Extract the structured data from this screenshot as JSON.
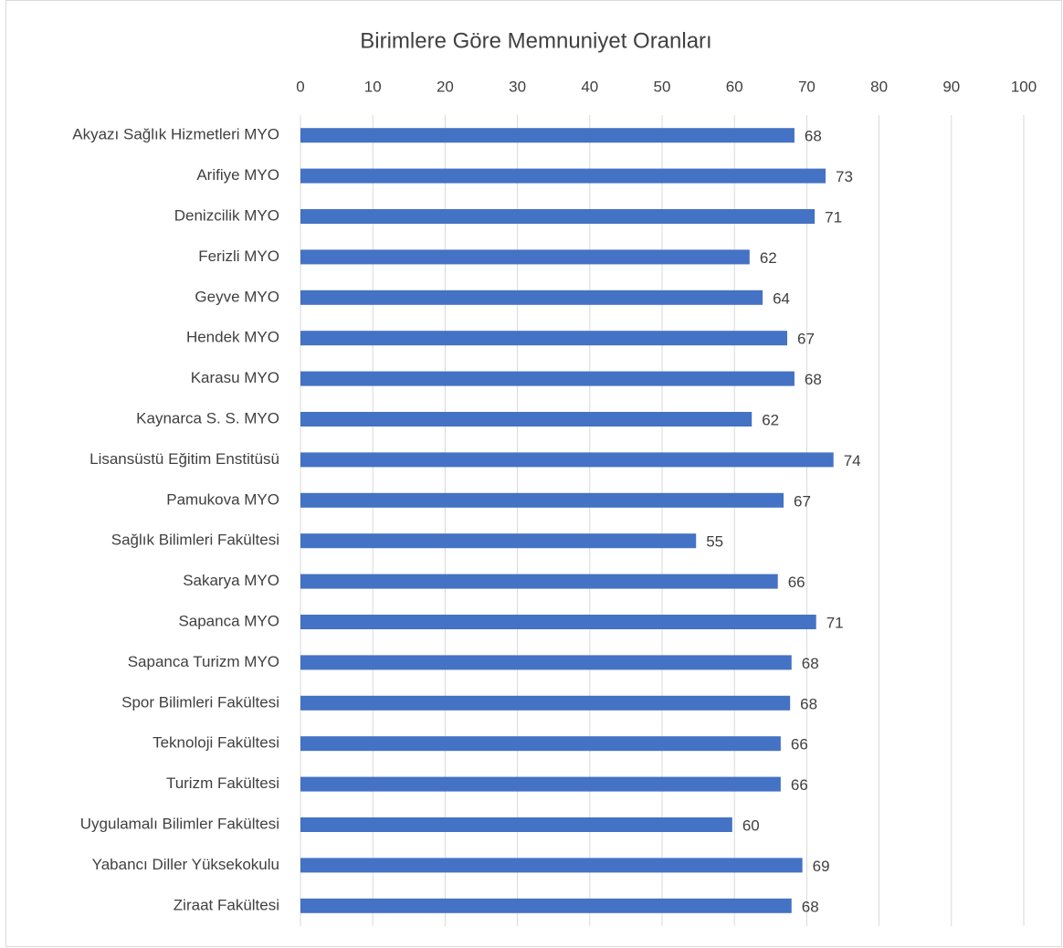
{
  "chart_data": {
    "type": "bar",
    "orientation": "horizontal",
    "title": "Birimlere Göre Memnuniyet Oranları",
    "categories": [
      "Akyazı Sağlık Hizmetleri MYO",
      "Arifiye MYO",
      "Denizcilik MYO",
      "Ferizli MYO",
      "Geyve MYO",
      "Hendek MYO",
      "Karasu MYO",
      "Kaynarca S. S. MYO",
      "Lisansüstü Eğitim Enstitüsü",
      "Pamukova MYO",
      "Sağlık Bilimleri Fakültesi",
      "Sakarya MYO",
      "Sapanca MYO",
      "Sapanca Turizm MYO",
      "Spor Bilimleri Fakültesi",
      "Teknoloji Fakültesi",
      "Turizm Fakültesi",
      "Uygulamalı Bilimler Fakültesi",
      "Yabancı Diller Yüksekokulu",
      "Ziraat Fakültesi"
    ],
    "values": [
      68.3,
      72.6,
      71.1,
      62.1,
      63.9,
      67.3,
      68.3,
      62.4,
      73.7,
      66.8,
      54.7,
      66.0,
      71.3,
      67.9,
      67.7,
      66.4,
      66.4,
      59.7,
      69.4,
      67.9
    ],
    "value_labels": [
      "68",
      "73",
      "71",
      "62",
      "64",
      "67",
      "68",
      "62",
      "74",
      "67",
      "55",
      "66",
      "71",
      "68",
      "68",
      "66",
      "66",
      "60",
      "69",
      "68"
    ],
    "color": "#4472c4",
    "xlim": [
      0,
      100
    ],
    "xticks": [
      0,
      10,
      20,
      30,
      40,
      50,
      60,
      70,
      80,
      90,
      100
    ],
    "grid": true
  }
}
